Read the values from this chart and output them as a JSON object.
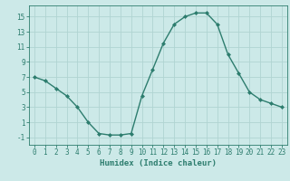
{
  "x": [
    0,
    1,
    2,
    3,
    4,
    5,
    6,
    7,
    8,
    9,
    10,
    11,
    12,
    13,
    14,
    15,
    16,
    17,
    18,
    19,
    20,
    21,
    22,
    23
  ],
  "y": [
    7,
    6.5,
    5.5,
    4.5,
    3,
    1,
    -0.5,
    -0.7,
    -0.7,
    -0.5,
    4.5,
    8,
    11.5,
    14,
    15,
    15.5,
    15.5,
    14,
    10,
    7.5,
    5,
    4,
    3.5,
    3
  ],
  "line_color": "#2d7d6e",
  "marker": "D",
  "marker_size": 2,
  "bg_color": "#cce9e8",
  "grid_color": "#b0d4d2",
  "xlabel": "Humidex (Indice chaleur)",
  "xlim": [
    -0.5,
    23.5
  ],
  "ylim": [
    -2,
    16.5
  ],
  "xticks": [
    0,
    1,
    2,
    3,
    4,
    5,
    6,
    7,
    8,
    9,
    10,
    11,
    12,
    13,
    14,
    15,
    16,
    17,
    18,
    19,
    20,
    21,
    22,
    23
  ],
  "yticks": [
    -1,
    1,
    3,
    5,
    7,
    9,
    11,
    13,
    15
  ],
  "xlabel_fontsize": 6.5,
  "tick_fontsize": 5.5,
  "line_width": 1.0
}
